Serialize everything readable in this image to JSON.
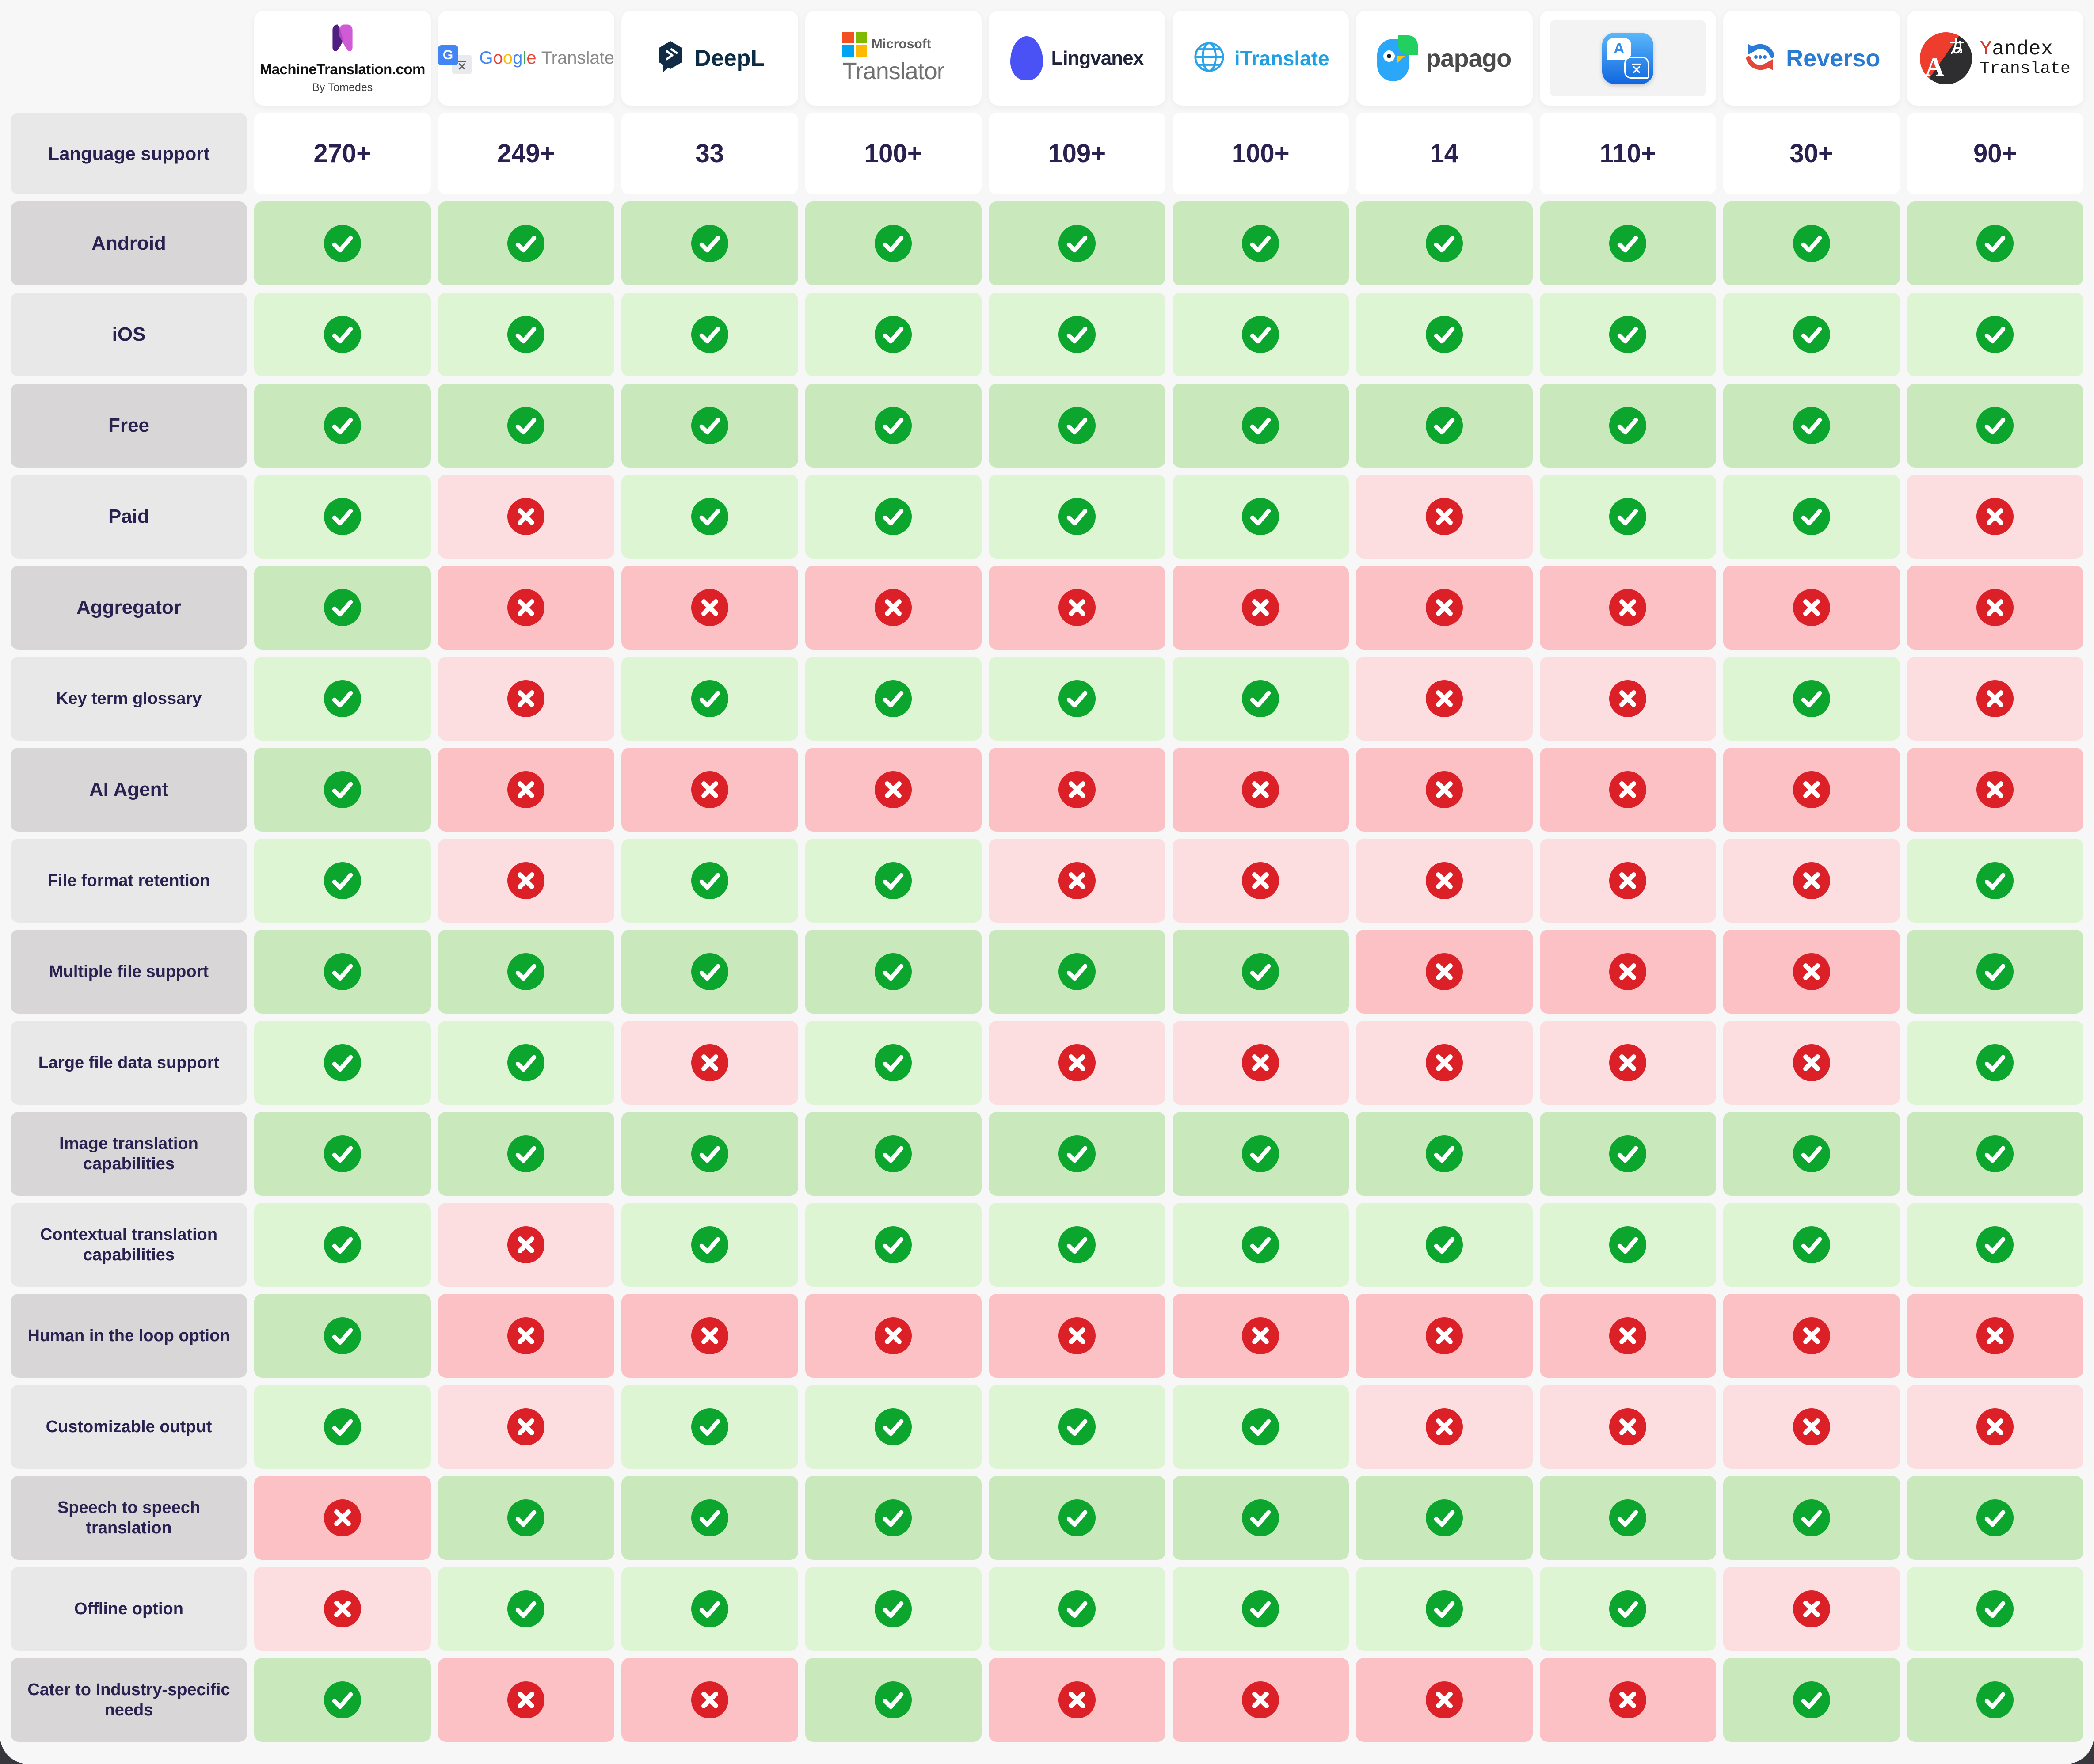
{
  "language_support_label": "Language support",
  "brands": [
    {
      "name": "machinetranslation",
      "label": "MachineTranslation.com",
      "sub": "By Tomedes",
      "languages": "270+"
    },
    {
      "name": "google-translate",
      "label_rest": "Translate",
      "languages": "249+",
      "letters": [
        {
          "ch": "G",
          "c": "#4285F4"
        },
        {
          "ch": "o",
          "c": "#EA4335"
        },
        {
          "ch": "o",
          "c": "#FBBC05"
        },
        {
          "ch": "g",
          "c": "#4285F4"
        },
        {
          "ch": "l",
          "c": "#34A853"
        },
        {
          "ch": "e",
          "c": "#EA4335"
        }
      ]
    },
    {
      "name": "deepl",
      "label": "DeepL",
      "languages": "33"
    },
    {
      "name": "microsoft-translator",
      "label_top": "Microsoft",
      "label": "Translator",
      "languages": "100+"
    },
    {
      "name": "lingvanex",
      "label": "Lingvanex",
      "languages": "109+"
    },
    {
      "name": "itranslate",
      "label": "iTranslate",
      "languages": "100+"
    },
    {
      "name": "papago",
      "label": "papago",
      "languages": "14"
    },
    {
      "name": "apple-translate",
      "languages": "110+"
    },
    {
      "name": "reverso",
      "label": "Reverso",
      "languages": "30+"
    },
    {
      "name": "yandex-translate",
      "label_y": "Y",
      "label_rest": "andex",
      "label2": "Translate",
      "languages": "90+"
    }
  ],
  "features": [
    {
      "label": "Android",
      "values": [
        1,
        1,
        1,
        1,
        1,
        1,
        1,
        1,
        1,
        1
      ]
    },
    {
      "label": "iOS",
      "values": [
        1,
        1,
        1,
        1,
        1,
        1,
        1,
        1,
        1,
        1
      ]
    },
    {
      "label": "Free",
      "values": [
        1,
        1,
        1,
        1,
        1,
        1,
        1,
        1,
        1,
        1
      ]
    },
    {
      "label": "Paid",
      "values": [
        1,
        0,
        1,
        1,
        1,
        1,
        0,
        1,
        1,
        0
      ]
    },
    {
      "label": "Aggregator",
      "values": [
        1,
        0,
        0,
        0,
        0,
        0,
        0,
        0,
        0,
        0
      ]
    },
    {
      "label": "Key term glossary",
      "values": [
        1,
        0,
        1,
        1,
        1,
        1,
        0,
        0,
        1,
        0
      ]
    },
    {
      "label": "AI Agent",
      "values": [
        1,
        0,
        0,
        0,
        0,
        0,
        0,
        0,
        0,
        0
      ]
    },
    {
      "label": "File format retention",
      "values": [
        1,
        0,
        1,
        1,
        0,
        0,
        0,
        0,
        0,
        1
      ]
    },
    {
      "label": "Multiple file support",
      "values": [
        1,
        1,
        1,
        1,
        1,
        1,
        0,
        0,
        0,
        1
      ]
    },
    {
      "label": "Large file data support",
      "values": [
        1,
        1,
        0,
        1,
        0,
        0,
        0,
        0,
        0,
        1
      ]
    },
    {
      "label": "Image translation capabilities",
      "values": [
        1,
        1,
        1,
        1,
        1,
        1,
        1,
        1,
        1,
        1
      ]
    },
    {
      "label": "Contextual translation capabilities",
      "values": [
        1,
        0,
        1,
        1,
        1,
        1,
        1,
        1,
        1,
        1
      ]
    },
    {
      "label": "Human in the loop option",
      "values": [
        1,
        0,
        0,
        0,
        0,
        0,
        0,
        0,
        0,
        0
      ]
    },
    {
      "label": "Customizable output",
      "values": [
        1,
        0,
        1,
        1,
        1,
        1,
        0,
        0,
        0,
        0
      ]
    },
    {
      "label": "Speech to speech translation",
      "values": [
        0,
        1,
        1,
        1,
        1,
        1,
        1,
        1,
        1,
        1
      ]
    },
    {
      "label": "Offline option",
      "values": [
        0,
        1,
        1,
        1,
        1,
        1,
        1,
        1,
        0,
        1
      ]
    },
    {
      "label": "Cater to Industry-specific needs",
      "values": [
        1,
        0,
        0,
        1,
        0,
        0,
        0,
        0,
        1,
        1
      ]
    }
  ],
  "icons": {
    "yes": "check-icon",
    "no": "cross-icon"
  },
  "colors": {
    "check_green": "#0ca62f",
    "cross_red": "#db2027",
    "cell_green_light": "#def5d4",
    "cell_green_dark": "#c9e9bc",
    "cell_pink_light": "#fcdee1",
    "cell_pink_dark": "#fbc1c4",
    "label_gray_light": "#e9e8e8",
    "label_gray_dark": "#d8d6d6",
    "text_navy": "#2b2150",
    "page_bg": "#f7f7f8"
  },
  "chart_data": {
    "type": "table",
    "title": "Machine translation tools comparison",
    "columns": [
      "MachineTranslation.com",
      "Google Translate",
      "DeepL",
      "Microsoft Translator",
      "Lingvanex",
      "iTranslate",
      "Papago",
      "Apple Translate",
      "Reverso",
      "Yandex Translate"
    ],
    "language_support": [
      "270+",
      "249+",
      "33",
      "100+",
      "109+",
      "100+",
      "14",
      "110+",
      "30+",
      "90+"
    ],
    "rows": [
      {
        "feature": "Android",
        "values": [
          true,
          true,
          true,
          true,
          true,
          true,
          true,
          true,
          true,
          true
        ]
      },
      {
        "feature": "iOS",
        "values": [
          true,
          true,
          true,
          true,
          true,
          true,
          true,
          true,
          true,
          true
        ]
      },
      {
        "feature": "Free",
        "values": [
          true,
          true,
          true,
          true,
          true,
          true,
          true,
          true,
          true,
          true
        ]
      },
      {
        "feature": "Paid",
        "values": [
          true,
          false,
          true,
          true,
          true,
          true,
          false,
          true,
          true,
          false
        ]
      },
      {
        "feature": "Aggregator",
        "values": [
          true,
          false,
          false,
          false,
          false,
          false,
          false,
          false,
          false,
          false
        ]
      },
      {
        "feature": "Key term glossary",
        "values": [
          true,
          false,
          true,
          true,
          true,
          true,
          false,
          false,
          true,
          false
        ]
      },
      {
        "feature": "AI Agent",
        "values": [
          true,
          false,
          false,
          false,
          false,
          false,
          false,
          false,
          false,
          false
        ]
      },
      {
        "feature": "File format retention",
        "values": [
          true,
          false,
          true,
          true,
          false,
          false,
          false,
          false,
          false,
          true
        ]
      },
      {
        "feature": "Multiple file support",
        "values": [
          true,
          true,
          true,
          true,
          true,
          true,
          false,
          false,
          false,
          true
        ]
      },
      {
        "feature": "Large file data support",
        "values": [
          true,
          true,
          false,
          true,
          false,
          false,
          false,
          false,
          false,
          true
        ]
      },
      {
        "feature": "Image translation capabilities",
        "values": [
          true,
          true,
          true,
          true,
          true,
          true,
          true,
          true,
          true,
          true
        ]
      },
      {
        "feature": "Contextual translation capabilities",
        "values": [
          true,
          false,
          true,
          true,
          true,
          true,
          true,
          true,
          true,
          true
        ]
      },
      {
        "feature": "Human in the loop option",
        "values": [
          true,
          false,
          false,
          false,
          false,
          false,
          false,
          false,
          false,
          false
        ]
      },
      {
        "feature": "Customizable output",
        "values": [
          true,
          false,
          true,
          true,
          true,
          true,
          false,
          false,
          false,
          false
        ]
      },
      {
        "feature": "Speech to speech translation",
        "values": [
          false,
          true,
          true,
          true,
          true,
          true,
          true,
          true,
          true,
          true
        ]
      },
      {
        "feature": "Offline option",
        "values": [
          false,
          true,
          true,
          true,
          true,
          true,
          true,
          true,
          false,
          true
        ]
      },
      {
        "feature": "Cater to Industry-specific needs",
        "values": [
          true,
          false,
          false,
          true,
          false,
          false,
          false,
          false,
          true,
          true
        ]
      }
    ]
  }
}
